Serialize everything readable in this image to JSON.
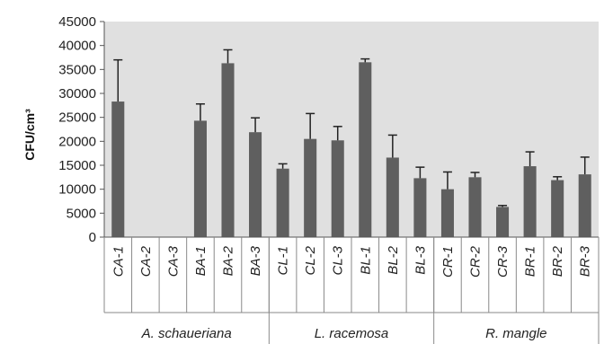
{
  "chart_data": {
    "type": "bar",
    "title": "",
    "xlabel": "",
    "ylabel": "CFU/cm³",
    "ylim": [
      0,
      45000
    ],
    "yticks": [
      0,
      5000,
      10000,
      15000,
      20000,
      25000,
      30000,
      35000,
      40000,
      45000
    ],
    "grid": false,
    "categories": [
      "CA-1",
      "CA-2",
      "CA-3",
      "BA-1",
      "BA-2",
      "BA-3",
      "CL-1",
      "CL-2",
      "CL-3",
      "BL-1",
      "BL-2",
      "BL-3",
      "CR-1",
      "CR-2",
      "CR-3",
      "BR-1",
      "BR-2",
      "BR-3"
    ],
    "values": [
      28300,
      0,
      0,
      24300,
      36300,
      21900,
      14300,
      20500,
      20200,
      36500,
      16600,
      12300,
      10000,
      12500,
      6300,
      14800,
      11900,
      13100
    ],
    "errors": [
      8700,
      0,
      0,
      3500,
      2800,
      3000,
      1000,
      5300,
      2900,
      700,
      4700,
      2300,
      3600,
      1000,
      300,
      3000,
      700,
      3600
    ],
    "groups": [
      {
        "label": "A. schaueriana",
        "start": 0,
        "end": 5
      },
      {
        "label": "L. racemosa",
        "start": 6,
        "end": 11
      },
      {
        "label": "R. mangle",
        "start": 12,
        "end": 17
      }
    ],
    "colors": {
      "bar": "#5f5f5f",
      "plot_bg": "#e0e0e0",
      "error_bar": "#222222"
    }
  }
}
